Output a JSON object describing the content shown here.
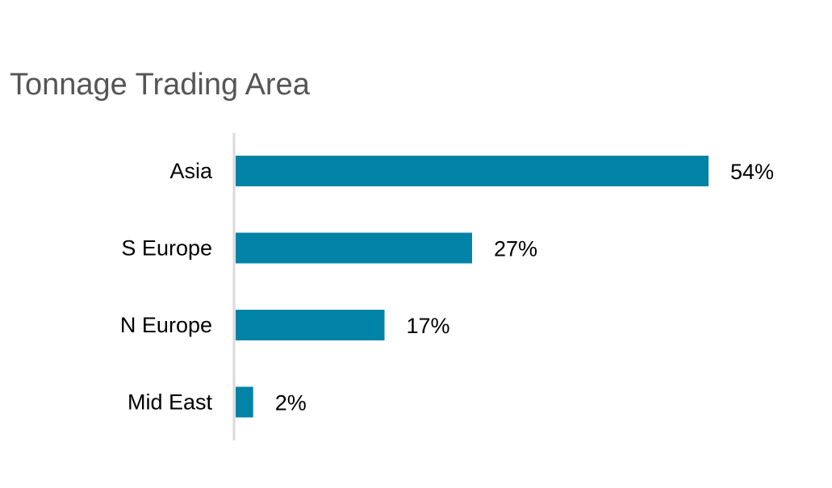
{
  "chart_data": {
    "type": "bar",
    "orientation": "horizontal",
    "title": "Tonnage Trading Area",
    "categories": [
      "Asia",
      "S Europe",
      "N Europe",
      "Mid East"
    ],
    "values": [
      54,
      27,
      17,
      2
    ],
    "data_labels": [
      "54%",
      "27%",
      "17%",
      "2%"
    ],
    "unit": "%",
    "xlabel": "",
    "ylabel": "",
    "xlim": [
      0,
      54
    ],
    "grid": false,
    "legend": "none",
    "colors": {
      "bar": "#0083a6",
      "axis": "#d9d9d9",
      "title": "#555555"
    }
  }
}
